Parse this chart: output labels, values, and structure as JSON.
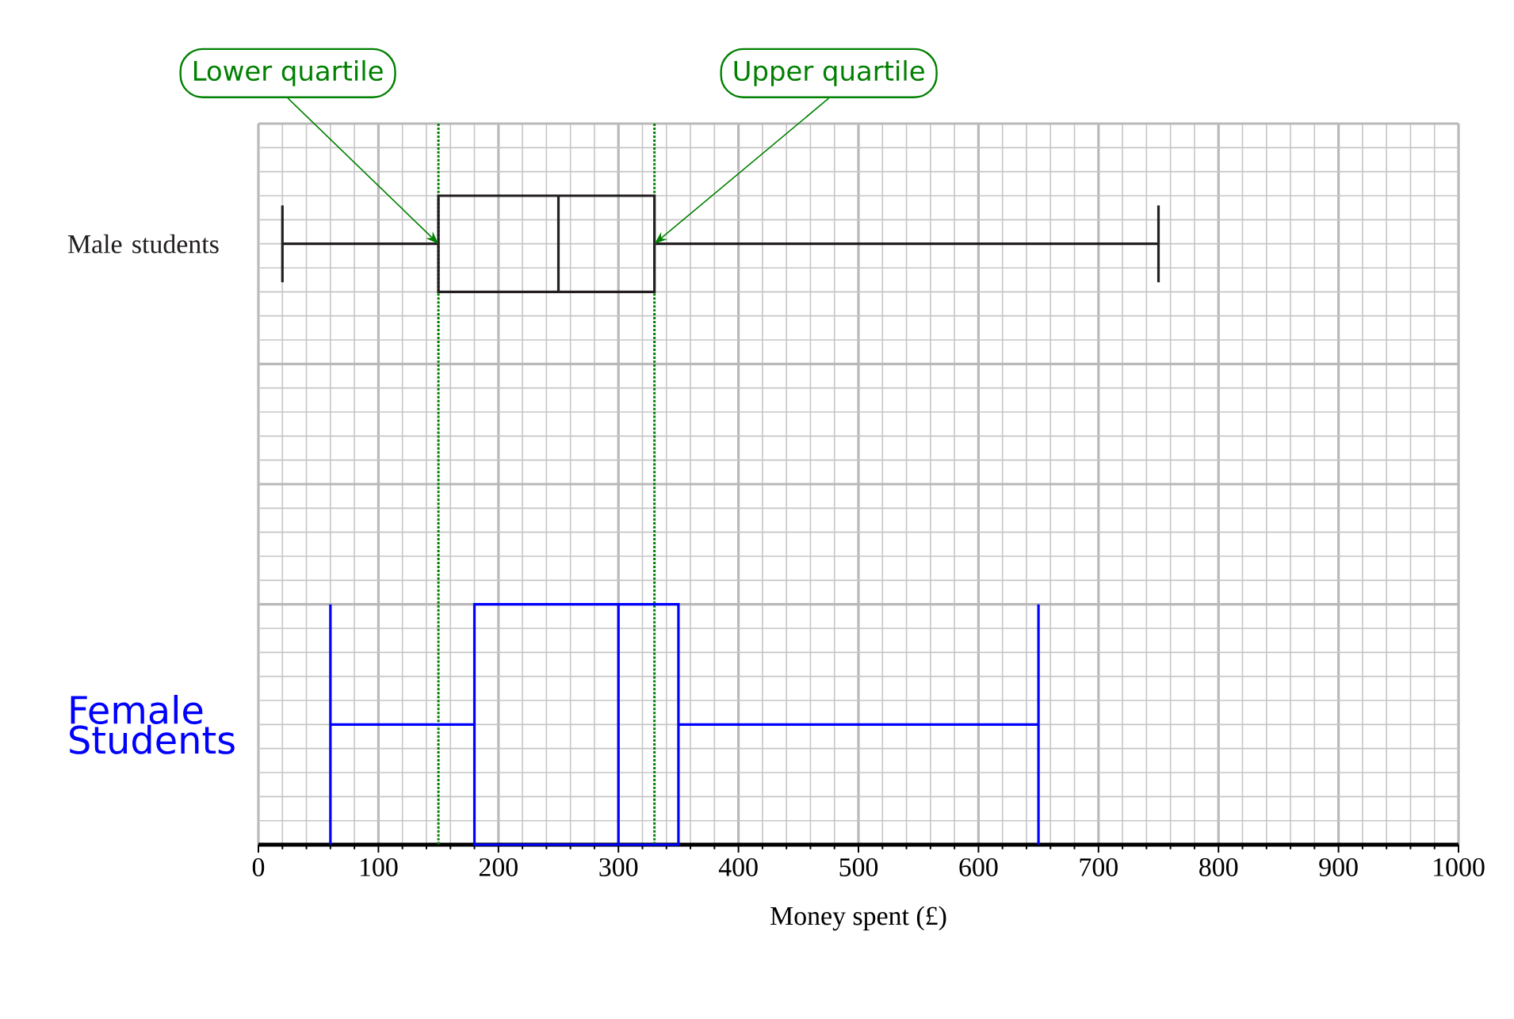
{
  "chart_data": {
    "type": "box",
    "orientation": "horizontal",
    "categories": [
      "Male students",
      "Female Students"
    ],
    "boxes": [
      {
        "low": 20,
        "q1": 150,
        "median": 250,
        "q3": 330,
        "high": 750
      },
      {
        "low": 60,
        "q1": 180,
        "median": 300,
        "q3": 350,
        "high": 650
      }
    ],
    "colors": [
      "#231f20",
      "#0000ff"
    ],
    "xlabel": "Money spent (£)",
    "xlim": [
      0,
      1000
    ],
    "xticks": [
      0,
      100,
      200,
      300,
      400,
      500,
      600,
      700,
      800,
      900,
      1000
    ],
    "grid": true,
    "annotations": [
      {
        "text": "Lower quartile",
        "x": 150,
        "y": "Male students"
      },
      {
        "text": "Upper quartile",
        "x": 330,
        "y": "Male students"
      }
    ],
    "ref_lines": [
      {
        "axis": "x",
        "value": 150,
        "color": "#008000",
        "line_style": "dotted"
      },
      {
        "axis": "x",
        "value": 330,
        "color": "#008000",
        "line_style": "dotted"
      }
    ]
  }
}
